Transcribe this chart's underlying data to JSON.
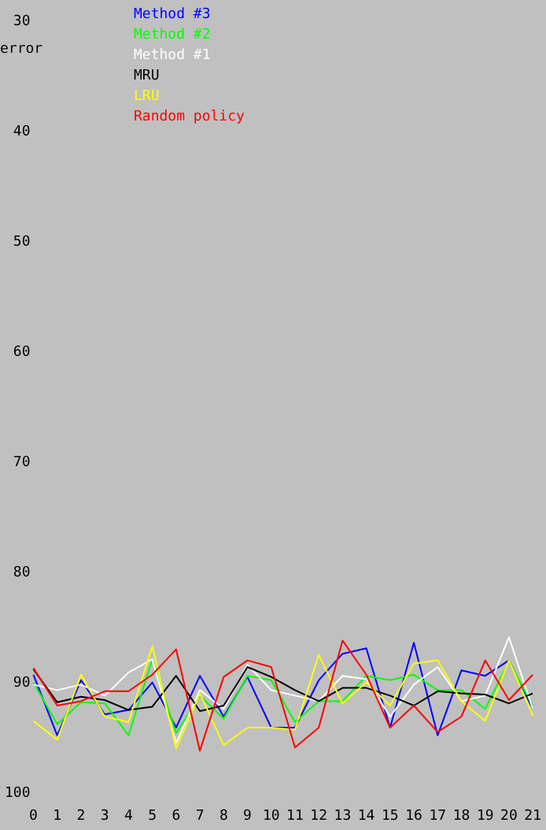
{
  "chart_data": {
    "type": "line",
    "ylabel": "error",
    "x": [
      0,
      1,
      2,
      3,
      4,
      5,
      6,
      7,
      8,
      9,
      10,
      11,
      12,
      13,
      14,
      15,
      16,
      17,
      18,
      19,
      20,
      21
    ],
    "xlim": [
      0,
      21
    ],
    "xticks": [
      0,
      1,
      2,
      3,
      4,
      5,
      6,
      7,
      8,
      9,
      10,
      11,
      12,
      13,
      14,
      15,
      16,
      17,
      18,
      19,
      20,
      21
    ],
    "ylim": [
      100,
      30
    ],
    "yticks": [
      30,
      40,
      50,
      60,
      70,
      80,
      90,
      100
    ],
    "grid": false,
    "legend": "top left",
    "marker": "none",
    "line_style": "solid",
    "series": [
      {
        "name": "Method #3",
        "color": "#0000ff",
        "values": [
          89.2,
          94.7,
          89.7,
          92.8,
          92.4,
          89.9,
          94.0,
          89.3,
          93.0,
          89.4,
          94.0,
          94.0,
          89.7,
          87.3,
          86.8,
          94.0,
          86.3,
          94.7,
          88.8,
          89.3,
          87.9,
          92.3
        ]
      },
      {
        "name": "Method #2",
        "color": "#00ff00",
        "values": [
          89.9,
          93.7,
          91.7,
          91.8,
          94.7,
          87.8,
          94.5,
          91.1,
          93.2,
          89.3,
          89.7,
          93.5,
          91.6,
          91.6,
          89.3,
          89.7,
          89.2,
          90.6,
          90.6,
          92.3,
          88.0,
          92.0
        ]
      },
      {
        "name": "Method #1",
        "color": "#ffffff",
        "values": [
          90.1,
          90.6,
          90.1,
          91.1,
          89.0,
          87.8,
          95.4,
          90.6,
          92.3,
          88.3,
          90.6,
          91.1,
          91.6,
          89.3,
          89.6,
          93.0,
          90.1,
          88.5,
          91.6,
          91.1,
          85.8,
          92.3
        ]
      },
      {
        "name": "MRU",
        "color": "#000000",
        "values": [
          88.7,
          91.7,
          91.2,
          91.5,
          92.4,
          92.1,
          89.3,
          92.5,
          92.0,
          88.5,
          89.4,
          90.6,
          91.6,
          90.4,
          90.4,
          91.1,
          92.0,
          90.7,
          90.9,
          91.0,
          91.8,
          90.9
        ]
      },
      {
        "name": "LRU",
        "color": "#ffff00",
        "values": [
          93.4,
          95.1,
          89.2,
          93.0,
          93.5,
          86.6,
          95.9,
          90.9,
          95.6,
          94.0,
          94.0,
          94.2,
          87.4,
          91.8,
          89.9,
          92.0,
          88.2,
          87.9,
          91.6,
          93.4,
          87.9,
          92.9
        ]
      },
      {
        "name": "Random policy",
        "color": "#ff0000",
        "values": [
          88.6,
          92.0,
          91.6,
          90.7,
          90.7,
          89.2,
          86.9,
          96.1,
          89.4,
          87.9,
          88.5,
          95.8,
          94.0,
          86.1,
          89.2,
          94.0,
          92.0,
          94.4,
          93.0,
          87.9,
          91.5,
          89.2
        ]
      }
    ]
  }
}
